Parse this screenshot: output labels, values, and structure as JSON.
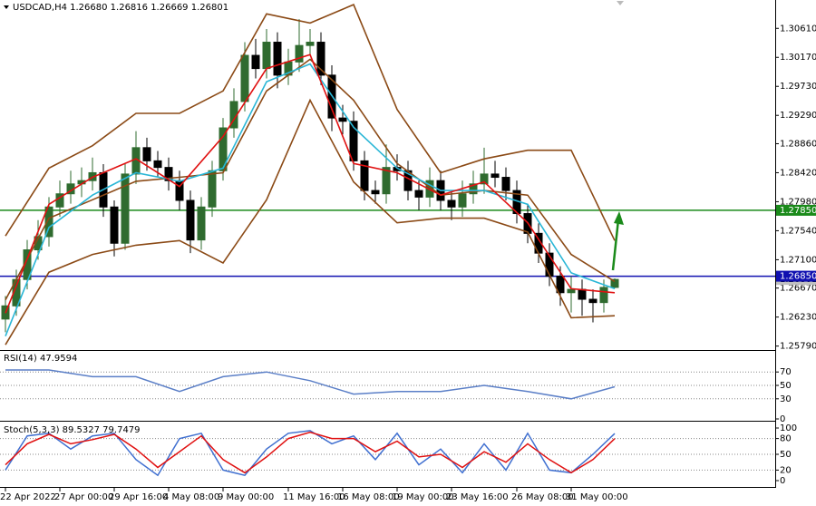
{
  "chart_data": [
    {
      "type": "candlestick",
      "title": "USDCAD,H4 1.26680 1.26816 1.26669 1.26801",
      "up_color": "#2f6b2f",
      "down_color": "#000000",
      "open": [
        1.262,
        1.264,
        1.268,
        1.2725,
        1.2745,
        1.279,
        1.281,
        1.2825,
        1.283,
        1.2842,
        1.279,
        1.2735,
        1.284,
        1.288,
        1.286,
        1.285,
        1.283,
        1.28,
        1.274,
        1.279,
        1.2845,
        1.291,
        1.295,
        1.302,
        1.3,
        1.304,
        1.299,
        1.301,
        1.3035,
        1.304,
        1.299,
        1.2925,
        1.292,
        1.286,
        1.2815,
        1.281,
        1.285,
        1.2845,
        1.2815,
        1.2805,
        1.283,
        1.28,
        1.279,
        1.281,
        1.2825,
        1.284,
        1.2835,
        1.2815,
        1.278,
        1.275,
        1.272,
        1.2685,
        1.266,
        1.2665,
        1.265,
        1.2645,
        1.2668
      ],
      "high": [
        1.2655,
        1.2695,
        1.274,
        1.277,
        1.2805,
        1.283,
        1.2845,
        1.285,
        1.2865,
        1.2855,
        1.28,
        1.2855,
        1.2905,
        1.2895,
        1.2875,
        1.2865,
        1.2845,
        1.2815,
        1.2805,
        1.286,
        1.2925,
        1.297,
        1.304,
        1.3045,
        1.306,
        1.3055,
        1.303,
        1.3075,
        1.306,
        1.3055,
        1.3005,
        1.2945,
        1.2935,
        1.2875,
        1.283,
        1.2885,
        1.287,
        1.286,
        1.283,
        1.285,
        1.2845,
        1.2815,
        1.283,
        1.2845,
        1.288,
        1.286,
        1.285,
        1.283,
        1.2795,
        1.2765,
        1.2735,
        1.27,
        1.2685,
        1.268,
        1.2665,
        1.268,
        1.26816
      ],
      "low": [
        1.26,
        1.2625,
        1.2665,
        1.271,
        1.273,
        1.2775,
        1.2795,
        1.2805,
        1.2815,
        1.2775,
        1.2715,
        1.2725,
        1.2825,
        1.2845,
        1.2835,
        1.2815,
        1.2785,
        1.272,
        1.2725,
        1.2775,
        1.283,
        1.2895,
        1.2935,
        1.2985,
        1.2985,
        1.297,
        1.2975,
        1.2995,
        1.302,
        1.2975,
        1.2905,
        1.29,
        1.2845,
        1.28,
        1.2795,
        1.2795,
        1.283,
        1.28,
        1.2785,
        1.279,
        1.2785,
        1.277,
        1.2775,
        1.2795,
        1.281,
        1.282,
        1.28,
        1.2765,
        1.2735,
        1.2705,
        1.267,
        1.264,
        1.263,
        1.2625,
        1.2615,
        1.263,
        1.26669
      ],
      "close": [
        1.264,
        1.268,
        1.2725,
        1.2745,
        1.279,
        1.281,
        1.2825,
        1.283,
        1.2842,
        1.279,
        1.2735,
        1.284,
        1.288,
        1.286,
        1.285,
        1.283,
        1.28,
        1.274,
        1.279,
        1.2845,
        1.291,
        1.295,
        1.302,
        1.3,
        1.304,
        1.299,
        1.301,
        1.3035,
        1.304,
        1.299,
        1.2925,
        1.292,
        1.286,
        1.2815,
        1.281,
        1.285,
        1.2845,
        1.2815,
        1.2805,
        1.283,
        1.28,
        1.279,
        1.281,
        1.2825,
        1.284,
        1.2835,
        1.2815,
        1.278,
        1.275,
        1.272,
        1.2685,
        1.266,
        1.2665,
        1.265,
        1.2645,
        1.2668,
        1.26801
      ],
      "overlays": {
        "x": [
          0,
          4,
          8,
          12,
          16,
          20,
          24,
          28,
          32,
          36,
          40,
          44,
          48,
          52,
          56
        ],
        "series": [
          {
            "color": "#8b4a16",
            "values": [
              1.2746,
              1.2849,
              1.2883,
              1.2932,
              1.2932,
              1.2966,
              1.3083,
              1.3069,
              1.3097,
              1.2938,
              1.2842,
              1.2863,
              1.2876,
              1.2876,
              1.2739
            ]
          },
          {
            "color": "#8b4a16",
            "values": [
              1.2649,
              1.2773,
              1.2801,
              1.2829,
              1.2835,
              1.2842,
              1.2966,
              1.3014,
              1.2952,
              1.2856,
              1.2808,
              1.2815,
              1.2808,
              1.2718,
              1.2677
            ]
          },
          {
            "color": "#8b4a16",
            "values": [
              1.2581,
              1.2691,
              1.2718,
              1.2732,
              1.2739,
              1.2705,
              1.2801,
              1.2952,
              1.2828,
              1.2766,
              1.2773,
              1.2773,
              1.2752,
              1.2622,
              1.2625
            ]
          },
          {
            "color": "#29b6d6",
            "values": [
              1.2594,
              1.2759,
              1.2808,
              1.2842,
              1.2829,
              1.2849,
              1.298,
              1.3007,
              1.2911,
              1.2849,
              1.2815,
              1.2815,
              1.2794,
              1.269,
              1.2666
            ]
          },
          {
            "color": "#e01010",
            "values": [
              1.2629,
              1.2794,
              1.2835,
              1.2863,
              1.2821,
              1.2897,
              1.3,
              1.3021,
              1.2856,
              1.2842,
              1.2808,
              1.2828,
              1.2766,
              1.2666,
              1.266
            ]
          }
        ]
      },
      "xlim": [
        -0.5,
        70.75
      ],
      "xticks": [
        {
          "value": 0,
          "label": "22 Apr 2022"
        },
        {
          "value": 5,
          "label": "27 Apr 00:00"
        },
        {
          "value": 10,
          "label": "29 Apr 16:00"
        },
        {
          "value": 15,
          "label": "4 May 08:00"
        },
        {
          "value": 20,
          "label": "9 May 00:00"
        },
        {
          "value": 26,
          "label": "11 May 16:00"
        },
        {
          "value": 31,
          "label": "16 May 08:00"
        },
        {
          "value": 36,
          "label": "19 May 00:00"
        },
        {
          "value": 41,
          "label": "23 May 16:00"
        },
        {
          "value": 47,
          "label": "26 May 08:00"
        },
        {
          "value": 52,
          "label": "31 May 00:00"
        }
      ],
      "ylim": [
        1.2573,
        1.3104
      ],
      "yticks": [
        {
          "value": 1.3061,
          "label": "1.30610"
        },
        {
          "value": 1.3017,
          "label": "1.30170"
        },
        {
          "value": 1.2973,
          "label": "1.29730"
        },
        {
          "value": 1.2929,
          "label": "1.29290"
        },
        {
          "value": 1.2886,
          "label": "1.28860"
        },
        {
          "value": 1.2842,
          "label": "1.28420"
        },
        {
          "value": 1.2798,
          "label": "1.27980"
        },
        {
          "value": 1.2754,
          "label": "1.27540"
        },
        {
          "value": 1.271,
          "label": "1.27100"
        },
        {
          "value": 1.2667,
          "label": "1.26670"
        },
        {
          "value": 1.2623,
          "label": "1.26230"
        },
        {
          "value": 1.2579,
          "label": "1.25790"
        }
      ],
      "price_label": {
        "value": 1.26801,
        "label": "1.26801"
      },
      "levels": [
        {
          "value": 1.2785,
          "label": "1.27850",
          "color": "#1a8a1a"
        },
        {
          "value": 1.2685,
          "label": "1.26850",
          "color": "#1010b0"
        }
      ]
    },
    {
      "type": "line",
      "title": "RSI(14) 47.9594",
      "x": [
        0,
        4,
        8,
        12,
        16,
        20,
        24,
        28,
        32,
        36,
        40,
        44,
        48,
        52,
        56
      ],
      "series": [
        {
          "color": "#5b7fc7",
          "values": [
            73,
            73,
            63,
            63,
            41,
            63,
            70,
            57,
            37,
            41,
            41,
            50,
            41,
            30,
            47.9594
          ]
        }
      ],
      "ylim": [
        0,
        100
      ],
      "yticks": [
        0,
        30,
        50,
        70
      ],
      "grid_levels": [
        30,
        50,
        70
      ]
    },
    {
      "type": "line",
      "title": "Stoch(5,3,3) 89.5327 79.7479",
      "x": [
        0,
        2,
        4,
        6,
        8,
        10,
        12,
        14,
        16,
        18,
        20,
        22,
        24,
        26,
        28,
        30,
        32,
        34,
        36,
        38,
        40,
        42,
        44,
        46,
        48,
        50,
        52,
        54,
        56
      ],
      "series": [
        {
          "color": "#3f6fd0",
          "values": [
            20,
            85,
            90,
            60,
            85,
            90,
            40,
            10,
            80,
            90,
            20,
            10,
            60,
            90,
            95,
            70,
            85,
            40,
            90,
            30,
            60,
            15,
            70,
            20,
            90,
            20,
            15,
            50,
            89.5327
          ]
        },
        {
          "color": "#e01010",
          "values": [
            30,
            70,
            88,
            70,
            78,
            88,
            60,
            25,
            55,
            85,
            40,
            15,
            45,
            80,
            92,
            80,
            80,
            55,
            75,
            45,
            50,
            25,
            55,
            35,
            70,
            40,
            15,
            40,
            79.7479
          ]
        }
      ],
      "ylim": [
        0,
        100
      ],
      "yticks": [
        0,
        20,
        50,
        80,
        100
      ],
      "grid_levels": [
        20,
        50,
        80
      ]
    }
  ]
}
